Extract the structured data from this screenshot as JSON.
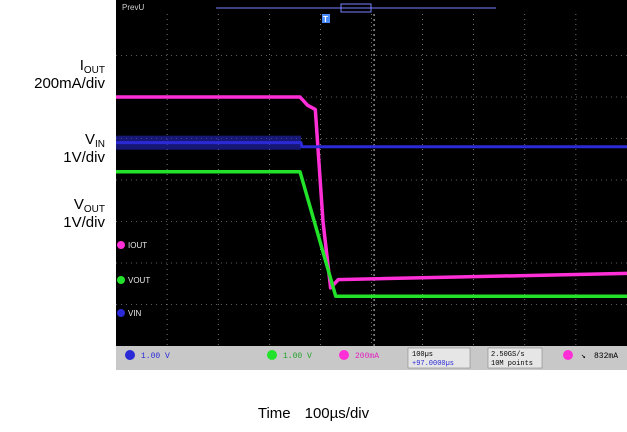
{
  "channel_labels": [
    {
      "name": "I",
      "sub": "OUT",
      "scale": "200mA/div"
    },
    {
      "name": "V",
      "sub": "IN",
      "scale": "1V/div"
    },
    {
      "name": "V",
      "sub": "OUT",
      "scale": "1V/div"
    }
  ],
  "scope": {
    "top_left_tag": "PrevU",
    "trigger_marker": "T",
    "trace_tags": [
      "IOUT",
      "VOUT",
      "VIN"
    ],
    "status": {
      "ch1": "1.00 V",
      "ch3": "1.00 V",
      "ch4": "200mA",
      "timebase": "100µs",
      "delay": "+97.0000µs",
      "rate": "2.50GS/s",
      "points": "10M points",
      "trigger_level": "832mA"
    }
  },
  "x_axis": {
    "label": "Time",
    "scale": "100µs/div"
  },
  "colors": {
    "iout": "#ff2fd7",
    "vin": "#2a2ad6",
    "vout": "#22e22a",
    "screen": "#000000",
    "grid": "#b8b8b8"
  },
  "chart_data": {
    "type": "line",
    "xlabel": "Time",
    "x_unit": "divisions",
    "xlim": [
      0,
      10
    ],
    "ylim": [
      0,
      8
    ],
    "grid": true,
    "series": [
      {
        "name": "IOUT",
        "scale": "200mA/div",
        "x": [
          0,
          3.6,
          3.75,
          3.9,
          4.05,
          4.2,
          4.35,
          10
        ],
        "values": [
          6.0,
          6.0,
          5.8,
          5.7,
          3.0,
          1.4,
          1.6,
          1.75
        ]
      },
      {
        "name": "VIN",
        "scale": "1V/div",
        "x": [
          0,
          3.62,
          3.64,
          10
        ],
        "values": [
          4.9,
          4.9,
          4.8,
          4.8
        ]
      },
      {
        "name": "VOUT",
        "scale": "1V/div",
        "x": [
          0,
          3.6,
          4.3,
          10
        ],
        "values": [
          4.2,
          4.2,
          1.2,
          1.2
        ]
      }
    ]
  }
}
